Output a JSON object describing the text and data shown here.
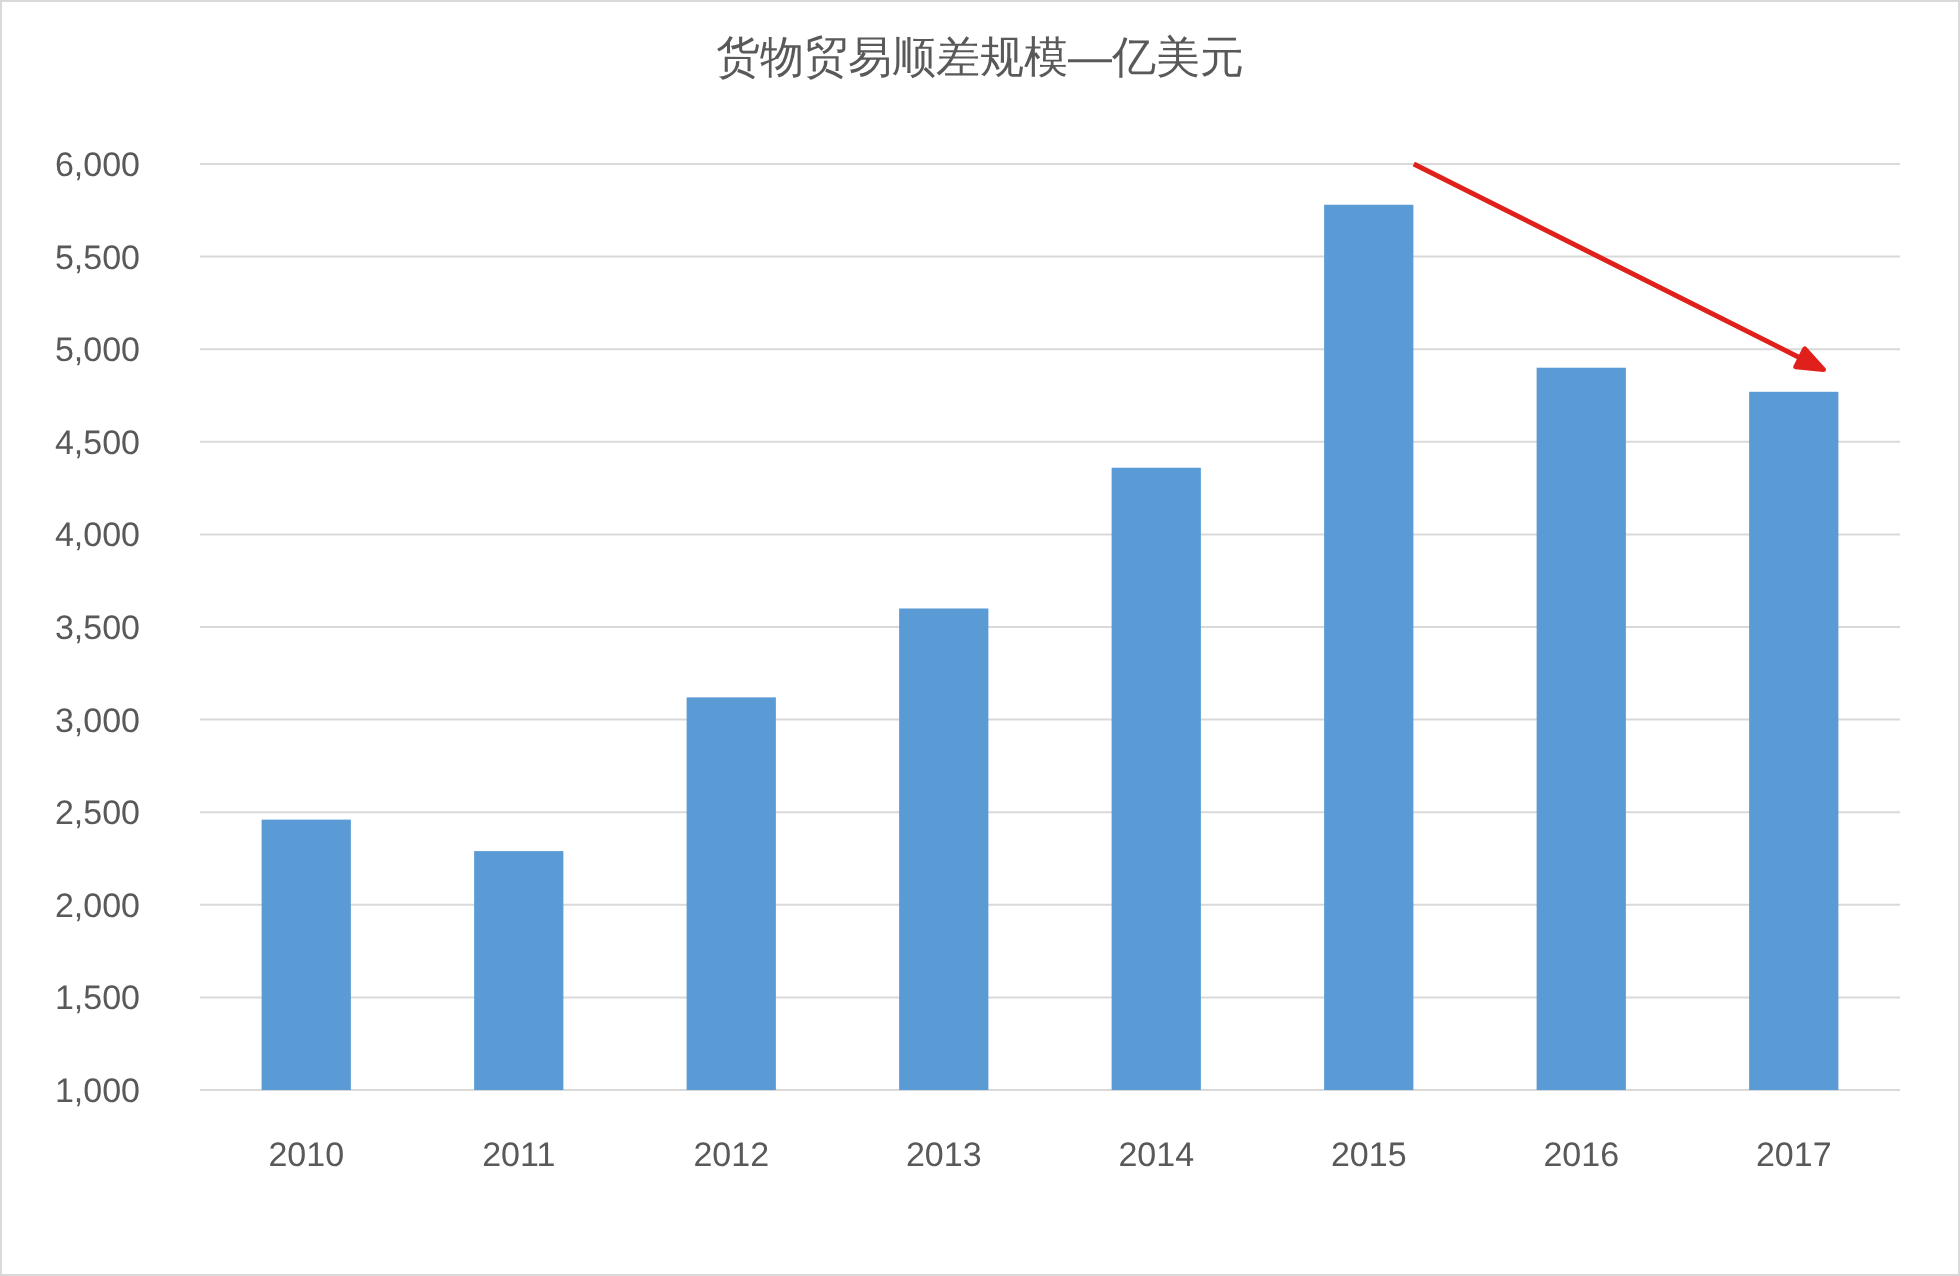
{
  "chart_data": {
    "type": "bar",
    "title": "货物贸易顺差规模—亿美元",
    "categories": [
      "2010",
      "2011",
      "2012",
      "2013",
      "2014",
      "2015",
      "2016",
      "2017"
    ],
    "values": [
      2460,
      2290,
      3120,
      3600,
      4360,
      5780,
      4900,
      4770
    ],
    "color": "#5b9bd5",
    "ylim": [
      1000,
      6000
    ],
    "yticks": [
      {
        "value": 1000,
        "label": "1,000"
      },
      {
        "value": 1500,
        "label": "1,500"
      },
      {
        "value": 2000,
        "label": "2,000"
      },
      {
        "value": 2500,
        "label": "2,500"
      },
      {
        "value": 3000,
        "label": "3,000"
      },
      {
        "value": 3500,
        "label": "3,500"
      },
      {
        "value": 4000,
        "label": "4,000"
      },
      {
        "value": 4500,
        "label": "4,500"
      },
      {
        "value": 5000,
        "label": "5,000"
      },
      {
        "value": 5500,
        "label": "5,500"
      },
      {
        "value": 6000,
        "label": "6,000"
      }
    ],
    "grid": "y"
  }
}
